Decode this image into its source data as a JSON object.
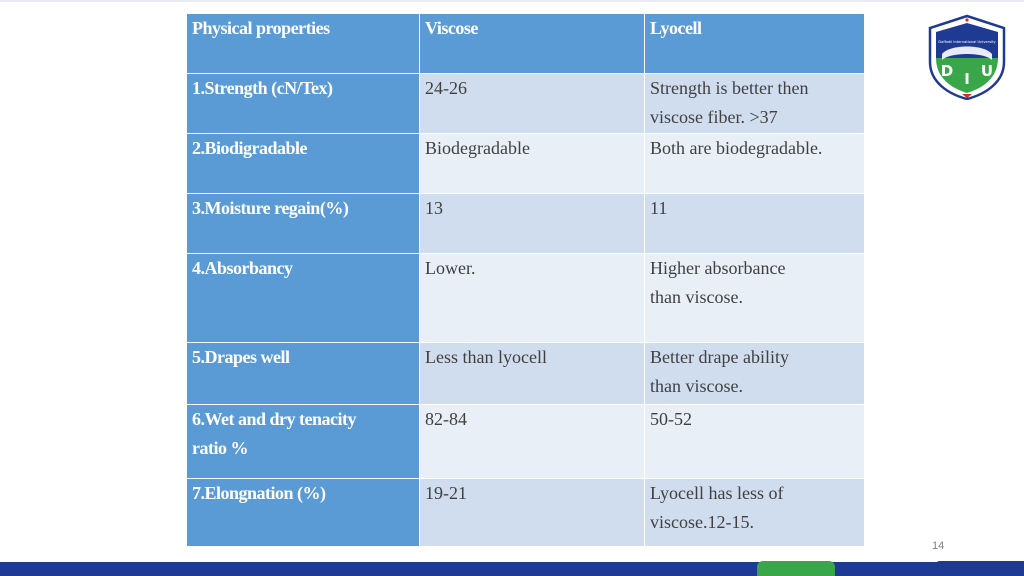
{
  "table": {
    "headers": [
      "Physical properties",
      "Viscose",
      "Lyocell"
    ],
    "rows": [
      {
        "property": "1.Strength (cN/Tex)",
        "viscose": [
          "24-26"
        ],
        "lyocell": [
          "Strength is better then",
          "viscose fiber. >37"
        ]
      },
      {
        "property": "2.Biodigradable",
        "viscose": [
          "Biodegradable"
        ],
        "lyocell": [
          "Both are biodegradable."
        ]
      },
      {
        "property": "3.Moisture regain(%)",
        "viscose": [
          "13"
        ],
        "lyocell": [
          "11"
        ]
      },
      {
        "property": "4.Absorbancy",
        "viscose": [
          "Lower."
        ],
        "lyocell": [
          "Higher absorbance",
          "than viscose."
        ]
      },
      {
        "property": "5.Drapes well",
        "viscose": [
          "Less than lyocell"
        ],
        "lyocell": [
          "Better drape ability",
          "than viscose."
        ]
      },
      {
        "property": [
          "6.Wet and dry tenacity",
          "ratio %"
        ],
        "viscose": [
          "82-84"
        ],
        "lyocell": [
          "50-52"
        ]
      },
      {
        "property": "7.Elongnation (%)",
        "viscose": [
          "19-21"
        ],
        "lyocell": [
          "Lyocell has less of",
          "viscose.12-15."
        ]
      }
    ]
  },
  "page_number": "14",
  "logo": {
    "letters": [
      "D",
      "I",
      "U"
    ],
    "ring_text": "Daffodil International University",
    "colors": {
      "shield_blue": "#1f3a93",
      "shield_green": "#3aa64a",
      "accent_red": "#d62b2b"
    }
  },
  "colors": {
    "header_blue": "#5b9bd5",
    "row_light_a": "#cfddee",
    "row_light_b": "#e9eff7",
    "footer_blue": "#1f3a93",
    "footer_green": "#3aa64a"
  }
}
